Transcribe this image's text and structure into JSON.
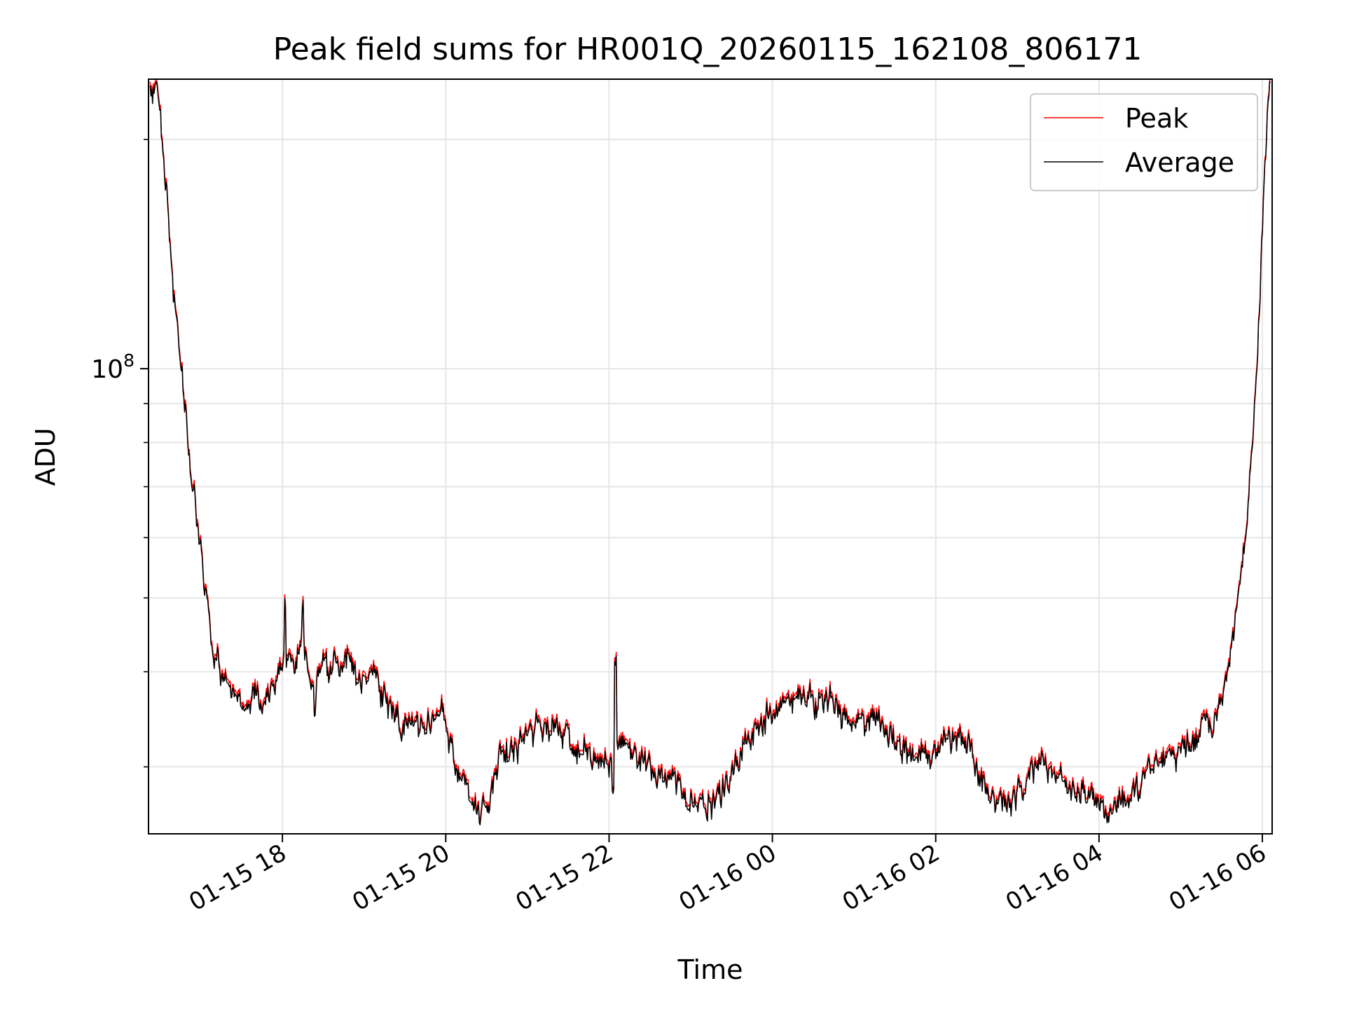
{
  "chart_data": {
    "type": "line",
    "title": "Peak field sums for HR001Q_20260115_162108_806171",
    "xlabel": "Time",
    "ylabel": "ADU",
    "yscale": "log",
    "ylim": [
      24500000,
      240000000
    ],
    "x_range_hours": [
      16.36,
      30.12
    ],
    "grid": true,
    "legend_location": "upper-right",
    "y_major_tick": {
      "value": 100000000,
      "base": "10",
      "exponent": "8"
    },
    "y_minor_ticks": [
      30000000,
      40000000,
      50000000,
      60000000,
      70000000,
      80000000,
      90000000,
      200000000
    ],
    "x_ticks": [
      {
        "hour": 18,
        "label": "01-15 18"
      },
      {
        "hour": 20,
        "label": "01-15 20"
      },
      {
        "hour": 22,
        "label": "01-15 22"
      },
      {
        "hour": 24,
        "label": "01-16 00"
      },
      {
        "hour": 26,
        "label": "01-16 02"
      },
      {
        "hour": 28,
        "label": "01-16 04"
      },
      {
        "hour": 30,
        "label": "01-16 06"
      }
    ],
    "series": [
      {
        "name": "Peak",
        "color": "#ff0000",
        "offset_factor": 1.012
      },
      {
        "name": "Average",
        "color": "#000000",
        "offset_factor": 1.0
      }
    ],
    "average_profile": [
      [
        16.38,
        235000000
      ],
      [
        16.46,
        235000000
      ],
      [
        16.52,
        205000000
      ],
      [
        16.58,
        170000000
      ],
      [
        16.65,
        130000000
      ],
      [
        16.75,
        105000000
      ],
      [
        16.85,
        78000000
      ],
      [
        16.95,
        65000000
      ],
      [
        17.05,
        52000000
      ],
      [
        17.15,
        42000000
      ],
      [
        17.25,
        40000000
      ],
      [
        17.35,
        38000000
      ],
      [
        17.45,
        37000000
      ],
      [
        17.55,
        35000000
      ],
      [
        17.65,
        37500000
      ],
      [
        17.75,
        36000000
      ],
      [
        17.85,
        38000000
      ],
      [
        17.95,
        40000000
      ],
      [
        18.02,
        43000000
      ],
      [
        18.15,
        41000000
      ],
      [
        18.25,
        44000000
      ],
      [
        18.35,
        38000000
      ],
      [
        18.5,
        41000000
      ],
      [
        18.65,
        40000000
      ],
      [
        18.8,
        41000000
      ],
      [
        18.95,
        39000000
      ],
      [
        19.1,
        40000000
      ],
      [
        19.2,
        38000000
      ],
      [
        19.3,
        36000000
      ],
      [
        19.45,
        34000000
      ],
      [
        19.6,
        34500000
      ],
      [
        19.75,
        33500000
      ],
      [
        19.85,
        35000000
      ],
      [
        19.95,
        35500000
      ],
      [
        20.05,
        32000000
      ],
      [
        20.15,
        29500000
      ],
      [
        20.25,
        28000000
      ],
      [
        20.35,
        26500000
      ],
      [
        20.45,
        26000000
      ],
      [
        20.55,
        27500000
      ],
      [
        20.65,
        31000000
      ],
      [
        20.8,
        31500000
      ],
      [
        20.95,
        32500000
      ],
      [
        21.1,
        33500000
      ],
      [
        21.25,
        34000000
      ],
      [
        21.4,
        33500000
      ],
      [
        21.55,
        32000000
      ],
      [
        21.7,
        31500000
      ],
      [
        21.85,
        30500000
      ],
      [
        22.0,
        30500000
      ],
      [
        22.1,
        31500000
      ],
      [
        22.2,
        32000000
      ],
      [
        22.3,
        31000000
      ],
      [
        22.45,
        30500000
      ],
      [
        22.6,
        29500000
      ],
      [
        22.75,
        28500000
      ],
      [
        22.9,
        27500000
      ],
      [
        23.05,
        26500000
      ],
      [
        23.2,
        26500000
      ],
      [
        23.35,
        27500000
      ],
      [
        23.5,
        29000000
      ],
      [
        23.65,
        31500000
      ],
      [
        23.8,
        33500000
      ],
      [
        23.95,
        35000000
      ],
      [
        24.15,
        36000000
      ],
      [
        24.35,
        36500000
      ],
      [
        24.55,
        36500000
      ],
      [
        24.7,
        37000000
      ],
      [
        24.85,
        35000000
      ],
      [
        25.0,
        34500000
      ],
      [
        25.15,
        34500000
      ],
      [
        25.3,
        34000000
      ],
      [
        25.45,
        32500000
      ],
      [
        25.6,
        31500000
      ],
      [
        25.75,
        31000000
      ],
      [
        25.9,
        30500000
      ],
      [
        26.0,
        31000000
      ],
      [
        26.1,
        32500000
      ],
      [
        26.25,
        33000000
      ],
      [
        26.4,
        32000000
      ],
      [
        26.55,
        28500000
      ],
      [
        26.7,
        27500000
      ],
      [
        26.85,
        27000000
      ],
      [
        27.0,
        28000000
      ],
      [
        27.15,
        29500000
      ],
      [
        27.3,
        30500000
      ],
      [
        27.45,
        29500000
      ],
      [
        27.6,
        28500000
      ],
      [
        27.7,
        27500000
      ],
      [
        27.8,
        28000000
      ],
      [
        27.9,
        27500000
      ],
      [
        28.0,
        26500000
      ],
      [
        28.1,
        26000000
      ],
      [
        28.2,
        26500000
      ],
      [
        28.3,
        27000000
      ],
      [
        28.45,
        28000000
      ],
      [
        28.6,
        29500000
      ],
      [
        28.75,
        30500000
      ],
      [
        28.9,
        31000000
      ],
      [
        29.05,
        31500000
      ],
      [
        29.2,
        33000000
      ],
      [
        29.35,
        34500000
      ],
      [
        29.45,
        36000000
      ],
      [
        29.55,
        39000000
      ],
      [
        29.65,
        45000000
      ],
      [
        29.72,
        52000000
      ],
      [
        29.8,
        62000000
      ],
      [
        29.87,
        75000000
      ],
      [
        29.92,
        95000000
      ],
      [
        29.97,
        125000000
      ],
      [
        30.02,
        170000000
      ],
      [
        30.06,
        210000000
      ],
      [
        30.1,
        235000000
      ]
    ],
    "spikes": [
      [
        18.03,
        1.18
      ],
      [
        18.25,
        1.14
      ],
      [
        22.08,
        1.32
      ],
      [
        22.05,
        0.9
      ],
      [
        24.65,
        1.04
      ],
      [
        18.4,
        0.92
      ],
      [
        20.42,
        0.95
      ],
      [
        23.2,
        0.93
      ]
    ]
  }
}
